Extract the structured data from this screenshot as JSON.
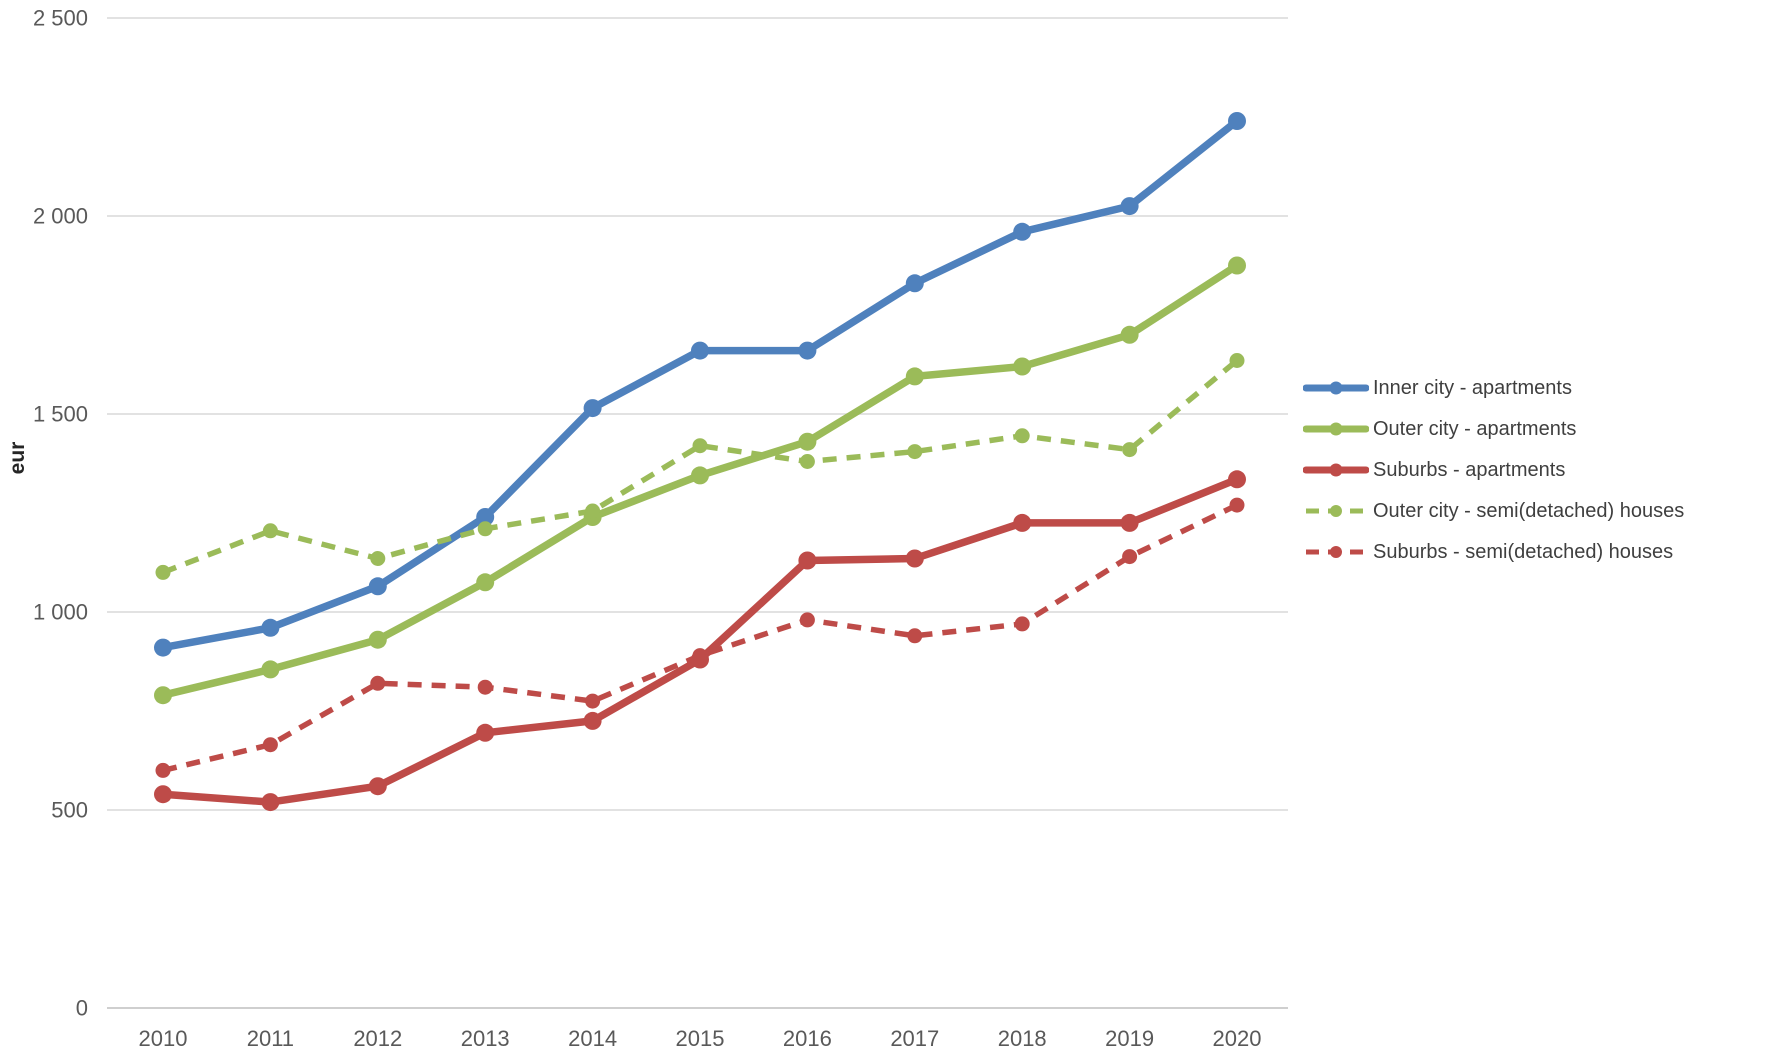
{
  "chart_data": {
    "type": "line",
    "title": "",
    "xlabel": "",
    "ylabel": "eur",
    "ylim": [
      0,
      2500
    ],
    "grid": "horizontal",
    "legend_position": "right",
    "categories": [
      "2010",
      "2011",
      "2012",
      "2013",
      "2014",
      "2015",
      "2016",
      "2017",
      "2018",
      "2019",
      "2020"
    ],
    "y_ticks": [
      {
        "value": 0,
        "label": "0"
      },
      {
        "value": 500,
        "label": "500"
      },
      {
        "value": 1000,
        "label": "1 000"
      },
      {
        "value": 1500,
        "label": "1 500"
      },
      {
        "value": 2000,
        "label": "2 000"
      },
      {
        "value": 2500,
        "label": "2 500"
      }
    ],
    "series": [
      {
        "name": "Inner city - apartments",
        "color": "#4F81BD",
        "style": "solid",
        "values": [
          910,
          960,
          1065,
          1240,
          1515,
          1660,
          1660,
          1830,
          1960,
          2025,
          2240
        ]
      },
      {
        "name": "Outer city - apartments",
        "color": "#9BBB59",
        "style": "solid",
        "values": [
          790,
          855,
          930,
          1075,
          1240,
          1345,
          1430,
          1595,
          1620,
          1700,
          1875
        ]
      },
      {
        "name": "Suburbs - apartments",
        "color": "#BE4B48",
        "style": "solid",
        "values": [
          540,
          520,
          560,
          695,
          725,
          880,
          1130,
          1135,
          1225,
          1225,
          1335
        ]
      },
      {
        "name": "Outer city - semi(detached) houses",
        "color": "#9BBB59",
        "style": "dashed",
        "values": [
          1100,
          1205,
          1135,
          1210,
          1255,
          1420,
          1380,
          1405,
          1445,
          1410,
          1635
        ]
      },
      {
        "name": "Suburbs - semi(detached) houses",
        "color": "#BE4B48",
        "style": "dashed",
        "values": [
          600,
          665,
          820,
          810,
          775,
          890,
          980,
          940,
          970,
          1140,
          1270
        ]
      }
    ],
    "colors": {
      "gridline": "#D9D9D9",
      "axis_line": "#BFBFBF",
      "tick_text": "#595959",
      "legend_text": "#3F3F3F"
    }
  }
}
